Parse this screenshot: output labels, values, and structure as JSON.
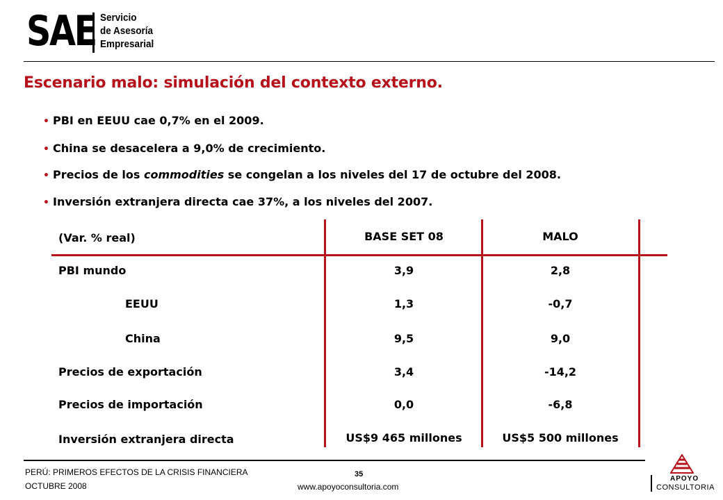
{
  "logo": {
    "mark": "SAE",
    "tagline_lines": [
      "Servicio",
      "de Asesoría",
      "Empresarial"
    ]
  },
  "title": "Escenario malo: simulación del contexto externo.",
  "bullets": [
    {
      "text": "PBI en EEUU cae 0,7% en el 2009."
    },
    {
      "text": "China se desacelera a 9,0% de crecimiento."
    },
    {
      "before": "Precios de los ",
      "emphasis": "commodities",
      "after": " se congelan a los niveles del 17 de octubre del 2008."
    },
    {
      "text": "Inversión extranjera directa cae 37%, a los niveles del 2007."
    }
  ],
  "table": {
    "unit_label": "(Var. % real)",
    "columns": [
      "BASE SET 08",
      "MALO"
    ],
    "rows": [
      {
        "label": "PBI mundo",
        "base": "3,9",
        "malo": "2,8"
      },
      {
        "label": "EEUU",
        "base": "1,3",
        "malo": "-0,7"
      },
      {
        "label": "China",
        "base": "9,5",
        "malo": "9,0"
      },
      {
        "label": "Precios de exportación",
        "base": "3,4",
        "malo": "-14,2"
      },
      {
        "label": "Precios de importación",
        "base": "0,0",
        "malo": "-6,8"
      },
      {
        "label": "Inversión extranjera directa",
        "base": "US$9 465 millones",
        "malo": "US$5 500 millones"
      }
    ]
  },
  "footer": {
    "line1": "PERÚ: PRIMEROS EFECTOS DE LA CRISIS FINANCIERA",
    "line2": "OCTUBRE 2008",
    "page": "35",
    "website": "www.apoyoconsultoria.com"
  },
  "apoyo_logo": {
    "line1": "APOYO",
    "line2": "CONSULTORIA"
  },
  "colors": {
    "accent": "#b5121b",
    "text": "#000000"
  }
}
